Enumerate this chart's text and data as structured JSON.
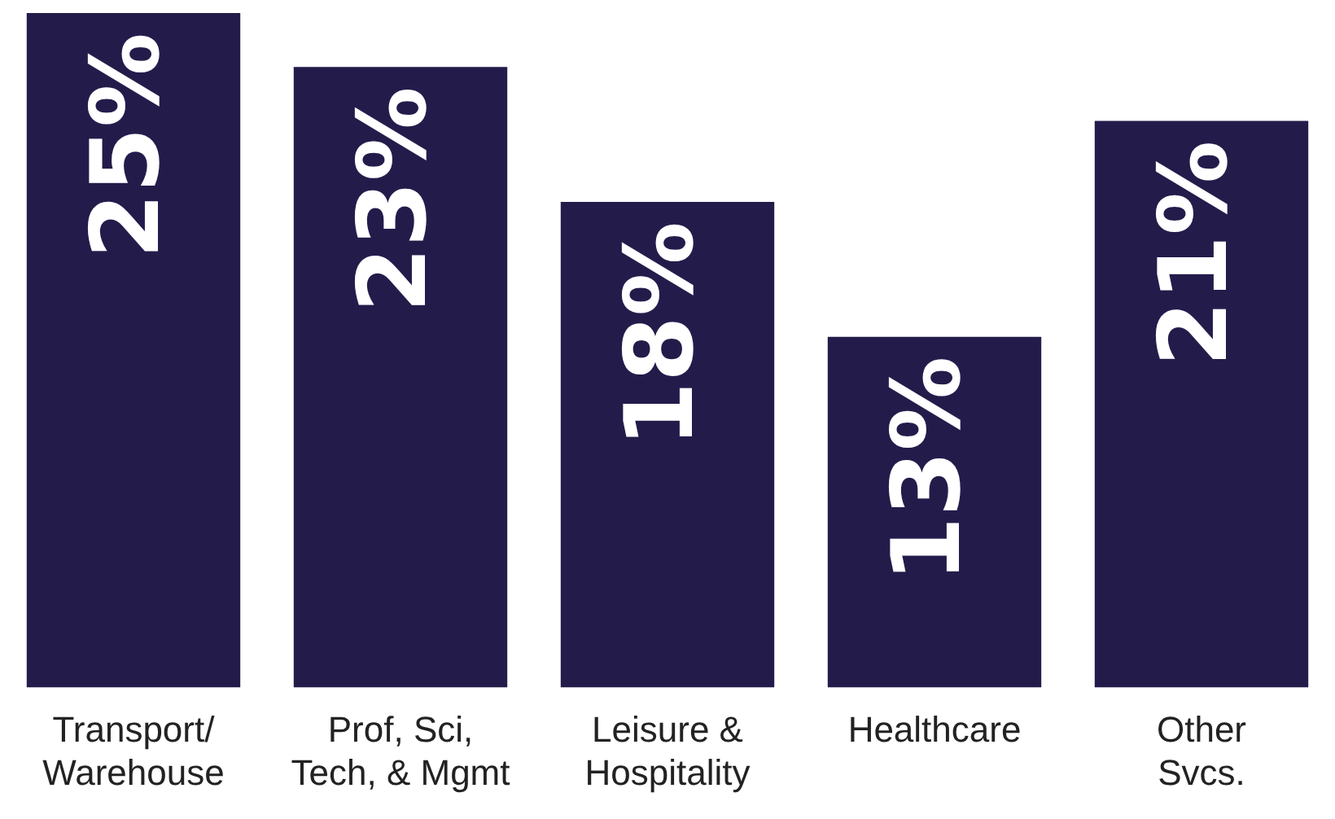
{
  "chart_data": {
    "type": "bar",
    "categories": [
      "Transport/\nWarehouse",
      "Prof, Sci,\nTech, & Mgmt",
      "Leisure &\nHospitality",
      "Healthcare",
      "Other\nSvcs."
    ],
    "values": [
      25,
      23,
      18,
      13,
      21
    ],
    "color": "#231c4b",
    "ylim": [
      0,
      25
    ],
    "data_labels": true,
    "value_labels": [
      "25%",
      "23%",
      "18%",
      "13%",
      "21%"
    ],
    "grid": false,
    "legend": false
  }
}
